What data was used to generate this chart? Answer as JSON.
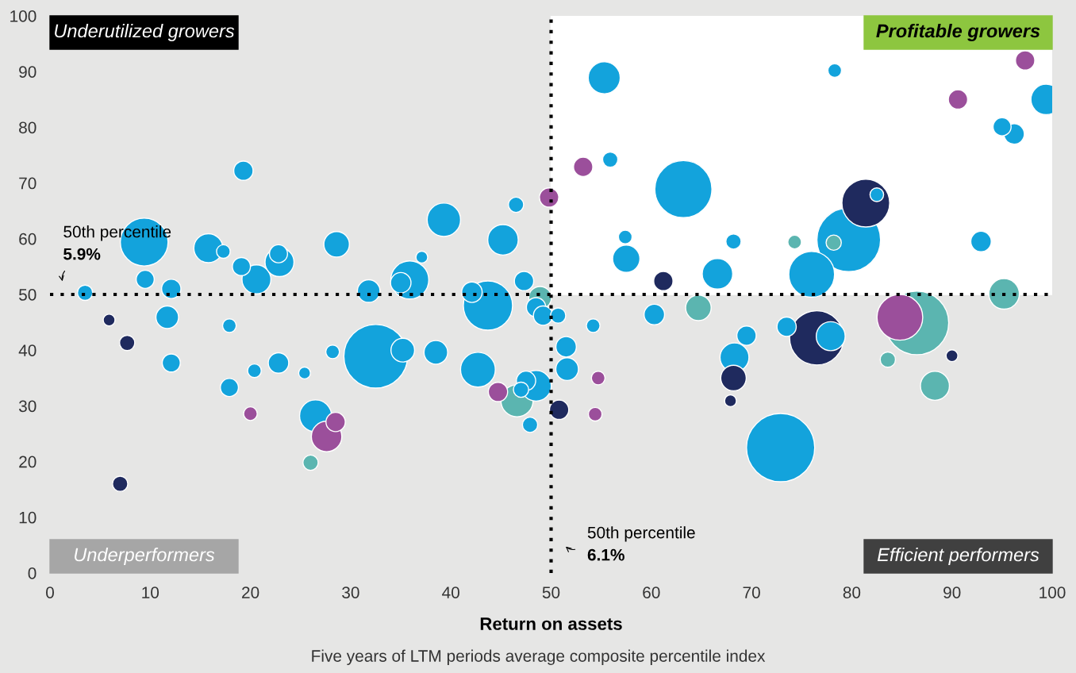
{
  "chart_data": {
    "type": "bubble",
    "xlabel": "Return on assets",
    "xlim": [
      0,
      100
    ],
    "ylim": [
      0,
      100
    ],
    "xticks": [
      0,
      10,
      20,
      30,
      40,
      50,
      60,
      70,
      80,
      90,
      100
    ],
    "yticks": [
      0,
      10,
      20,
      30,
      40,
      50,
      60,
      70,
      80,
      90,
      100
    ],
    "grid": false,
    "ref_lines": [
      {
        "axis": "y",
        "value": 50,
        "label": "50th percentile\n5.9%",
        "color": "#000000",
        "line_style": "dotted"
      },
      {
        "axis": "x",
        "value": 50,
        "label": "50th percentile\n6.1%",
        "color": "#000000",
        "line_style": "dotted"
      }
    ],
    "annotations": [
      "Underutilized growers",
      "Profitable growers",
      "Underperformers",
      "Efficient performers",
      "Five years of LTM periods average composite percentile index"
    ],
    "series": [
      {
        "color": "#13a3dc",
        "x": [
          3.5,
          9.5,
          9.4,
          12.1,
          11.7,
          12.1,
          15.8,
          17.3,
          19.1,
          19.3,
          20.6,
          22.9,
          22.8,
          28.6,
          17.9,
          17.9,
          20.4,
          22.8,
          25.4,
          26.5,
          28.2,
          31.8,
          32.5,
          35.2,
          35.9,
          35.0,
          37.1,
          39.3,
          38.5,
          42.7,
          43.7,
          42.1,
          45.2,
          46.5,
          47.3,
          47.9,
          48.5,
          47.5,
          47.0,
          48.5,
          49.2,
          50.7,
          51.5,
          51.6,
          54.2,
          55.3,
          55.9,
          57.4,
          57.5,
          60.3,
          63.2,
          66.6,
          68.2,
          68.3,
          69.5,
          73.5,
          72.9,
          76.0,
          79.7,
          77.9,
          78.3,
          82.5,
          92.9,
          95.0,
          96.2,
          99.4
        ],
        "values": [
          50.3,
          52.7,
          59.4,
          51.0,
          45.9,
          37.7,
          58.3,
          57.7,
          55.0,
          72.2,
          52.7,
          55.8,
          57.3,
          59.0,
          44.4,
          33.3,
          36.3,
          37.7,
          35.9,
          28.2,
          39.7,
          50.6,
          38.9,
          40.0,
          52.6,
          52.1,
          56.7,
          63.4,
          39.6,
          36.5,
          48.0,
          50.4,
          59.8,
          66.1,
          52.4,
          26.6,
          33.6,
          34.5,
          32.9,
          47.7,
          46.2,
          46.2,
          40.6,
          36.6,
          44.4,
          88.9,
          74.2,
          60.3,
          56.4,
          46.4,
          68.9,
          53.7,
          59.5,
          38.7,
          42.6,
          44.2,
          22.5,
          53.6,
          59.8,
          42.5,
          90.2,
          67.9,
          59.5,
          80.1,
          78.8,
          85.0
        ],
        "sizes": [
          0.05,
          0.07,
          0.49,
          0.08,
          0.11,
          0.07,
          0.18,
          0.04,
          0.07,
          0.08,
          0.18,
          0.18,
          0.07,
          0.14,
          0.04,
          0.07,
          0.04,
          0.09,
          0.03,
          0.22,
          0.04,
          0.11,
          0.87,
          0.12,
          0.31,
          0.09,
          0.03,
          0.24,
          0.12,
          0.26,
          0.52,
          0.09,
          0.2,
          0.05,
          0.08,
          0.05,
          0.2,
          0.08,
          0.05,
          0.08,
          0.08,
          0.05,
          0.09,
          0.11,
          0.04,
          0.22,
          0.05,
          0.04,
          0.16,
          0.09,
          0.7,
          0.2,
          0.05,
          0.18,
          0.08,
          0.08,
          1,
          0.45,
          0.87,
          0.18,
          0.04,
          0.04,
          0.09,
          0.07,
          0.09,
          0.2
        ]
      },
      {
        "color": "#1f2a5e",
        "x": [
          5.9,
          7.7,
          7.0,
          50.8,
          61.2,
          68.2,
          67.9,
          76.5,
          81.4,
          90.0
        ],
        "values": [
          45.4,
          41.3,
          16.0,
          29.3,
          52.4,
          35.0,
          30.9,
          42.2,
          66.4,
          39.0
        ],
        "sizes": [
          0.03,
          0.05,
          0.05,
          0.08,
          0.08,
          0.14,
          0.03,
          0.63,
          0.49,
          0.03
        ]
      },
      {
        "color": "#9b4f9b",
        "x": [
          20.0,
          27.6,
          28.5,
          44.7,
          49.8,
          53.2,
          54.7,
          54.4,
          84.8,
          90.6,
          97.3
        ],
        "values": [
          28.6,
          24.5,
          27.1,
          32.5,
          67.4,
          72.9,
          35.0,
          28.5,
          45.9,
          85.0,
          92.0
        ],
        "sizes": [
          0.04,
          0.2,
          0.08,
          0.08,
          0.08,
          0.08,
          0.04,
          0.04,
          0.45,
          0.08,
          0.08
        ]
      },
      {
        "color": "#5bb5b0",
        "x": [
          26.0,
          46.6,
          48.9,
          64.7,
          74.3,
          78.2,
          83.6,
          86.5,
          88.3,
          95.2
        ],
        "values": [
          19.8,
          30.9,
          49.4,
          47.6,
          59.4,
          59.3,
          38.3,
          44.9,
          33.6,
          50.1
        ],
        "sizes": [
          0.05,
          0.22,
          0.11,
          0.14,
          0.04,
          0.05,
          0.05,
          0.87,
          0.18,
          0.2
        ]
      }
    ]
  }
}
